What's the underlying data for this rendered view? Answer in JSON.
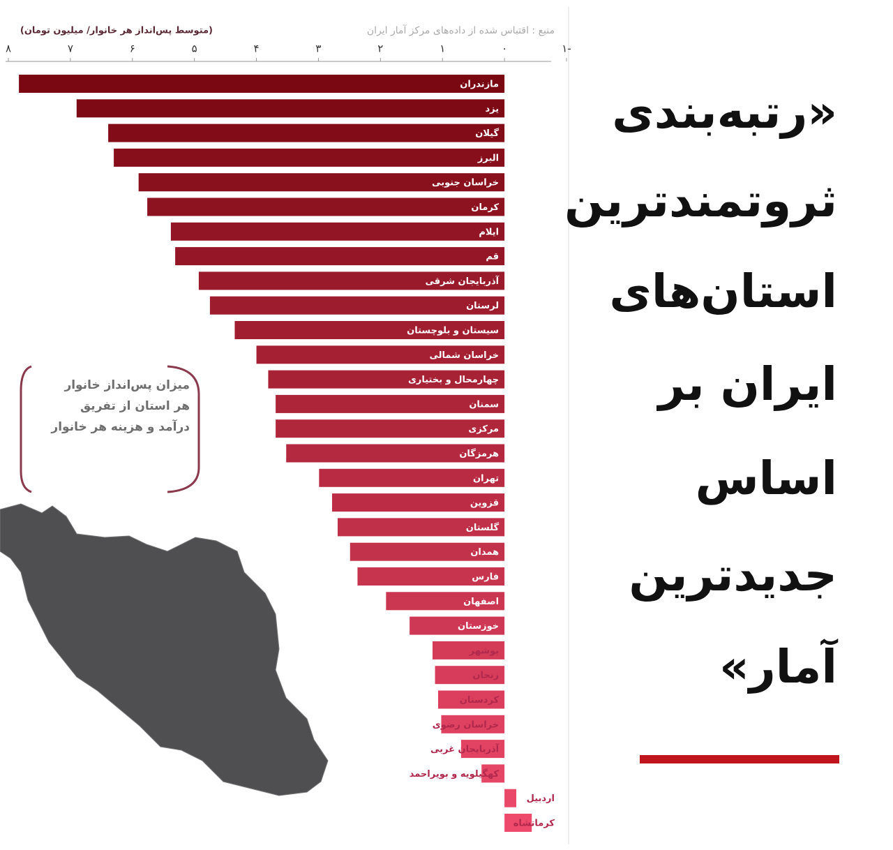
{
  "chart_data": {
    "type": "bar",
    "orientation": "horizontal",
    "title_lines": [
      "«رتبه‌بندی",
      "ثروتمندترین",
      "استان‌های",
      "ایران بر",
      "اساس",
      "جدیدترین",
      "آمار»"
    ],
    "source": "منبع : اقتباس شده از داده‌های مرکز آمار ایران",
    "axis_label": "(متوسط پس‌انداز هر خانوار/ میلیون تومان)",
    "annotation_lines": [
      "میزان پس‌انداز خانوار",
      "هر استان از تفریق",
      "درآمد و هزینه هر خانوار"
    ],
    "categories": [
      "مازندران",
      "یزد",
      "گیلان",
      "البرز",
      "خراسان جنوبی",
      "کرمان",
      "ایلام",
      "قم",
      "آذربایجان شرقی",
      "لرستان",
      "سیستان و بلوچستان",
      "خراسان شمالی",
      "چهارمحال و بختیاری",
      "سمنان",
      "مرکزی",
      "هرمزگان",
      "تهران",
      "قزوین",
      "گلستان",
      "همدان",
      "فارس",
      "اصفهان",
      "خوزستان",
      "بوشهر",
      "زنجان",
      "کردستان",
      "خراسان رضوی",
      "آذربایجان غربی",
      "کهگیلویه و بویراحمد",
      "اردبیل",
      "کرمانشاه"
    ],
    "values": [
      7.83,
      6.9,
      6.39,
      6.3,
      5.9,
      5.76,
      5.38,
      5.31,
      4.93,
      4.75,
      4.35,
      4.0,
      3.81,
      3.69,
      3.69,
      3.52,
      2.99,
      2.78,
      2.69,
      2.49,
      2.37,
      1.91,
      1.53,
      1.16,
      1.12,
      1.07,
      1.02,
      0.7,
      0.37,
      -0.19,
      -0.44
    ],
    "colors": [
      "#7a0812",
      "#ee4a6c"
    ],
    "xlim": [
      -1,
      8
    ],
    "reversed": true,
    "xticks": [
      {
        "value": 8,
        "label": "۸"
      },
      {
        "value": 7,
        "label": "۷"
      },
      {
        "value": 6,
        "label": "۶"
      },
      {
        "value": 5,
        "label": "۵"
      },
      {
        "value": 4,
        "label": "۴"
      },
      {
        "value": 3,
        "label": "۳"
      },
      {
        "value": 2,
        "label": "۲"
      },
      {
        "value": 1,
        "label": "۱"
      },
      {
        "value": 0,
        "label": "۰"
      },
      {
        "value": -1,
        "label": "-۱"
      }
    ]
  }
}
